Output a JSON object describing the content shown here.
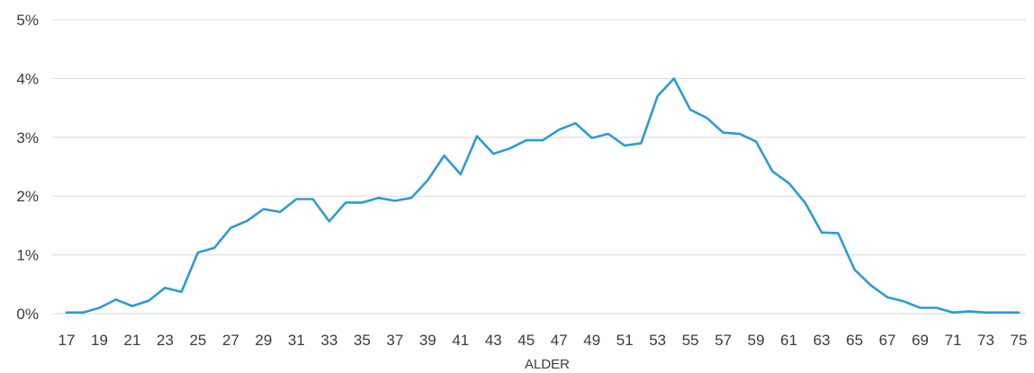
{
  "chart_data": {
    "type": "line",
    "xlabel": "ALDER",
    "ylabel": "",
    "ylim": [
      0,
      5
    ],
    "y_ticks": [
      "0%",
      "1%",
      "2%",
      "3%",
      "4%",
      "5%"
    ],
    "y_tick_values": [
      0,
      1,
      2,
      3,
      4,
      5
    ],
    "x_ticks": [
      "17",
      "19",
      "21",
      "23",
      "25",
      "27",
      "29",
      "31",
      "33",
      "35",
      "37",
      "39",
      "41",
      "43",
      "45",
      "47",
      "49",
      "51",
      "53",
      "55",
      "57",
      "59",
      "61",
      "63",
      "65",
      "67",
      "69",
      "71",
      "73",
      "75"
    ],
    "grid": true,
    "x": [
      17,
      18,
      19,
      20,
      21,
      22,
      23,
      24,
      25,
      26,
      27,
      28,
      29,
      30,
      31,
      32,
      33,
      34,
      35,
      36,
      37,
      38,
      39,
      40,
      41,
      42,
      43,
      44,
      45,
      46,
      47,
      48,
      49,
      50,
      51,
      52,
      53,
      54,
      55,
      56,
      57,
      58,
      59,
      60,
      61,
      62,
      63,
      64,
      65,
      66,
      67,
      68,
      69,
      70,
      71,
      72,
      73,
      74,
      75
    ],
    "series": [
      {
        "color": "#2e9bd0",
        "values": [
          0.02,
          0.02,
          0.1,
          0.24,
          0.13,
          0.22,
          0.44,
          0.37,
          1.04,
          1.12,
          1.46,
          1.58,
          1.78,
          1.73,
          1.95,
          1.95,
          1.57,
          1.89,
          1.89,
          1.97,
          1.92,
          1.97,
          2.27,
          2.69,
          2.37,
          3.02,
          2.72,
          2.81,
          2.95,
          2.95,
          3.13,
          3.24,
          2.99,
          3.06,
          2.86,
          2.9,
          3.7,
          4.0,
          3.47,
          3.33,
          3.08,
          3.06,
          2.93,
          2.42,
          2.22,
          1.88,
          1.38,
          1.37,
          0.75,
          0.48,
          0.28,
          0.21,
          0.1,
          0.1,
          0.02,
          0.04,
          0.02,
          0.02,
          0.02
        ]
      }
    ]
  }
}
